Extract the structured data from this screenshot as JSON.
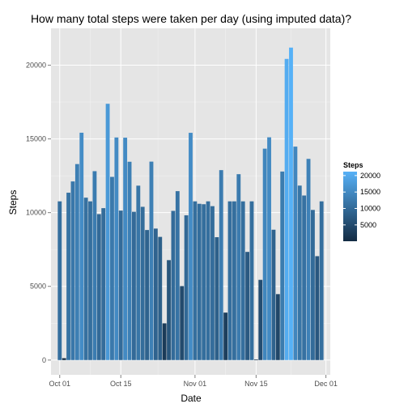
{
  "chart_data": {
    "type": "bar",
    "title": "How many total steps were taken per day (using imputed data)?",
    "xlabel": "Date",
    "ylabel": "Steps",
    "xlim": [
      "2012-09-29",
      "2012-12-02"
    ],
    "ylim": [
      -1000,
      22500
    ],
    "x_ticks": [
      {
        "date": "2012-10-01",
        "label": "Oct 01"
      },
      {
        "date": "2012-10-15",
        "label": "Oct 15"
      },
      {
        "date": "2012-11-01",
        "label": "Nov 01"
      },
      {
        "date": "2012-11-15",
        "label": "Nov 15"
      },
      {
        "date": "2012-12-01",
        "label": "Dec 01"
      }
    ],
    "y_ticks": [
      0,
      5000,
      10000,
      15000,
      20000
    ],
    "grid": true,
    "legend": {
      "title": "Steps",
      "placement": "right",
      "labels": [
        20000,
        15000,
        10000,
        5000
      ],
      "color_low": "#132B43",
      "color_high": "#56B1F7",
      "min": 41,
      "max": 21194
    },
    "x": [
      "2012-10-01",
      "2012-10-02",
      "2012-10-03",
      "2012-10-04",
      "2012-10-05",
      "2012-10-06",
      "2012-10-07",
      "2012-10-08",
      "2012-10-09",
      "2012-10-10",
      "2012-10-11",
      "2012-10-12",
      "2012-10-13",
      "2012-10-14",
      "2012-10-15",
      "2012-10-16",
      "2012-10-17",
      "2012-10-18",
      "2012-10-19",
      "2012-10-20",
      "2012-10-21",
      "2012-10-22",
      "2012-10-23",
      "2012-10-24",
      "2012-10-25",
      "2012-10-26",
      "2012-10-27",
      "2012-10-28",
      "2012-10-29",
      "2012-10-30",
      "2012-10-31",
      "2012-11-01",
      "2012-11-02",
      "2012-11-03",
      "2012-11-04",
      "2012-11-05",
      "2012-11-06",
      "2012-11-07",
      "2012-11-08",
      "2012-11-09",
      "2012-11-10",
      "2012-11-11",
      "2012-11-12",
      "2012-11-13",
      "2012-11-14",
      "2012-11-15",
      "2012-11-16",
      "2012-11-17",
      "2012-11-18",
      "2012-11-19",
      "2012-11-20",
      "2012-11-21",
      "2012-11-22",
      "2012-11-23",
      "2012-11-24",
      "2012-11-25",
      "2012-11-26",
      "2012-11-27",
      "2012-11-28",
      "2012-11-29",
      "2012-11-30"
    ],
    "values": [
      10766,
      126,
      11352,
      12116,
      13294,
      15420,
      11015,
      10766,
      12811,
      9900,
      10304,
      17382,
      12426,
      15098,
      10139,
      15084,
      13452,
      10056,
      11829,
      10395,
      8821,
      13460,
      8918,
      8355,
      2492,
      6778,
      10119,
      11458,
      5018,
      9819,
      15414,
      10766,
      10600,
      10571,
      10766,
      10439,
      8334,
      12883,
      3219,
      10766,
      10766,
      12608,
      10765,
      7336,
      10766,
      41,
      5441,
      14339,
      15110,
      8841,
      4472,
      12787,
      20427,
      21194,
      14478,
      11834,
      11162,
      13646,
      10183,
      7047,
      10766
    ]
  }
}
